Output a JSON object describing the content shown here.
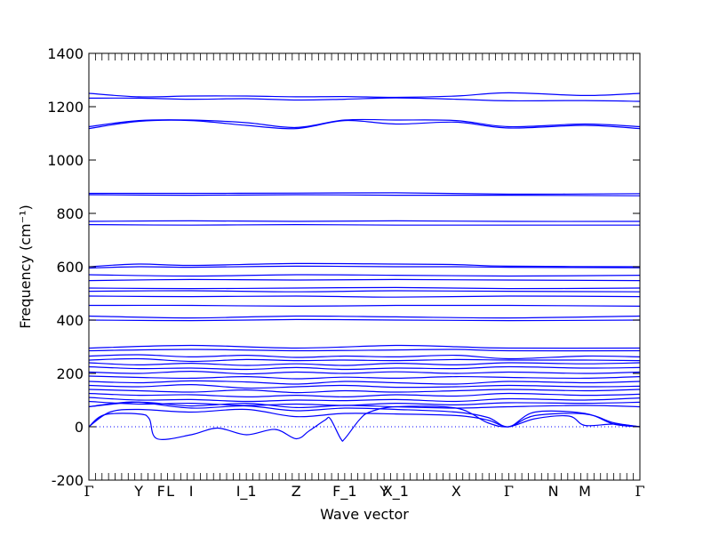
{
  "chart_data": {
    "type": "line",
    "title": "",
    "xlabel": "Wave vector",
    "ylabel": "Frequency (cm⁻¹)",
    "ylim": [
      -200,
      1400
    ],
    "yticks": [
      -200,
      0,
      200,
      400,
      600,
      800,
      1000,
      1200,
      1400
    ],
    "xlim": [
      0,
      21
    ],
    "xticks": [
      {
        "label": "Γ",
        "x": 0
      },
      {
        "label": "Y",
        "x": 1.9
      },
      {
        "label": "F",
        "x": 2.75
      },
      {
        "label": "L",
        "x": 3.1
      },
      {
        "label": "I",
        "x": 3.9
      },
      {
        "label": "I_1",
        "x": 6.0
      },
      {
        "label": "Z",
        "x": 7.9
      },
      {
        "label": "F_1",
        "x": 9.75
      },
      {
        "label": "Y",
        "x": 11.25
      },
      {
        "label": "X_1",
        "x": 11.7
      },
      {
        "label": "X",
        "x": 14.0
      },
      {
        "label": "Γ",
        "x": 16.0
      },
      {
        "label": "N",
        "x": 17.7
      },
      {
        "label": "M",
        "x": 18.9
      },
      {
        "label": "Γ",
        "x": 21.0
      }
    ],
    "grid": false,
    "reference_line": {
      "y": 0,
      "style": "dotted"
    },
    "series_color": "#0000ff",
    "series": [
      {
        "x": [
          0,
          1.9,
          3.9,
          6.0,
          7.9,
          9.75,
          11.7,
          14.0,
          16.0,
          18.9,
          21
        ],
        "values": [
          1250,
          1237,
          1240,
          1240,
          1237,
          1238,
          1235,
          1240,
          1252,
          1242,
          1250
        ]
      },
      {
        "x": [
          0,
          1.9,
          3.9,
          6.0,
          7.9,
          9.75,
          11.7,
          14.0,
          16.0,
          18.9,
          21
        ],
        "values": [
          1232,
          1232,
          1228,
          1230,
          1225,
          1228,
          1233,
          1228,
          1222,
          1223,
          1220
        ]
      },
      {
        "x": [
          0,
          1.9,
          3.9,
          6.0,
          7.9,
          9.75,
          11.7,
          14.0,
          16.0,
          18.9,
          21
        ],
        "values": [
          1125,
          1148,
          1150,
          1140,
          1122,
          1150,
          1150,
          1148,
          1125,
          1135,
          1125
        ]
      },
      {
        "x": [
          0,
          1.9,
          3.9,
          6.0,
          7.9,
          9.75,
          11.7,
          14.0,
          16.0,
          18.9,
          21
        ],
        "values": [
          1118,
          1145,
          1148,
          1130,
          1118,
          1148,
          1135,
          1142,
          1120,
          1130,
          1118
        ]
      },
      {
        "x": [
          0,
          3.9,
          7.9,
          11.7,
          16.0,
          21
        ],
        "values": [
          875,
          875,
          876,
          877,
          872,
          874
        ]
      },
      {
        "x": [
          0,
          3.9,
          7.9,
          11.7,
          16.0,
          21
        ],
        "values": [
          870,
          868,
          870,
          868,
          868,
          866
        ]
      },
      {
        "x": [
          0,
          3.9,
          7.9,
          11.7,
          16.0,
          21
        ],
        "values": [
          770,
          772,
          770,
          772,
          770,
          770
        ]
      },
      {
        "x": [
          0,
          3.9,
          7.9,
          11.7,
          16.0,
          21
        ],
        "values": [
          758,
          756,
          758,
          756,
          756,
          756
        ]
      },
      {
        "x": [
          0,
          1.9,
          3.9,
          7.9,
          11.7,
          14.0,
          16.0,
          21
        ],
        "values": [
          600,
          610,
          605,
          612,
          610,
          608,
          602,
          600
        ]
      },
      {
        "x": [
          0,
          1.9,
          3.9,
          7.9,
          11.7,
          14.0,
          16.0,
          21
        ],
        "values": [
          595,
          600,
          598,
          602,
          600,
          600,
          598,
          596
        ]
      },
      {
        "x": [
          0,
          3.9,
          7.9,
          11.7,
          16.0,
          21
        ],
        "values": [
          570,
          565,
          570,
          568,
          565,
          568
        ]
      },
      {
        "x": [
          0,
          3.9,
          7.9,
          11.7,
          16.0,
          21
        ],
        "values": [
          548,
          552,
          550,
          552,
          550,
          548
        ]
      },
      {
        "x": [
          0,
          3.9,
          7.9,
          11.7,
          16.0,
          21
        ],
        "values": [
          520,
          518,
          520,
          522,
          518,
          520
        ]
      },
      {
        "x": [
          0,
          3.9,
          7.9,
          11.7,
          16.0,
          21
        ],
        "values": [
          508,
          510,
          506,
          510,
          508,
          506
        ]
      },
      {
        "x": [
          0,
          3.9,
          7.9,
          11.7,
          16.0,
          21
        ],
        "values": [
          490,
          488,
          490,
          486,
          490,
          488
        ]
      },
      {
        "x": [
          0,
          3.9,
          7.9,
          11.7,
          16.0,
          21
        ],
        "values": [
          455,
          455,
          452,
          455,
          455,
          452
        ]
      },
      {
        "x": [
          0,
          3.9,
          7.9,
          11.7,
          16.0,
          21
        ],
        "values": [
          415,
          408,
          415,
          412,
          408,
          415
        ]
      },
      {
        "x": [
          0,
          3.9,
          7.9,
          11.7,
          16.0,
          21
        ],
        "values": [
          400,
          398,
          402,
          400,
          398,
          400
        ]
      },
      {
        "x": [
          0,
          3.9,
          7.9,
          11.7,
          14.0,
          16.0,
          21
        ],
        "values": [
          295,
          305,
          295,
          305,
          300,
          295,
          295
        ]
      },
      {
        "x": [
          0,
          3.9,
          7.9,
          11.7,
          14.0,
          16.0,
          21
        ],
        "values": [
          285,
          290,
          285,
          288,
          290,
          285,
          285
        ]
      },
      {
        "x": [
          0,
          1.9,
          3.9,
          6.0,
          7.9,
          9.75,
          11.7,
          14.0,
          16.0,
          18.9,
          21
        ],
        "values": [
          265,
          270,
          262,
          268,
          260,
          265,
          262,
          268,
          255,
          265,
          262
        ]
      },
      {
        "x": [
          0,
          1.9,
          3.9,
          6.0,
          7.9,
          9.75,
          11.7,
          14.0,
          16.0,
          18.9,
          21
        ],
        "values": [
          250,
          255,
          245,
          252,
          248,
          250,
          248,
          252,
          250,
          250,
          248
        ]
      },
      {
        "x": [
          0,
          1.9,
          3.9,
          6.0,
          7.9,
          9.75,
          11.7,
          14.0,
          16.0,
          18.9,
          21
        ],
        "values": [
          240,
          232,
          238,
          230,
          236,
          230,
          238,
          232,
          240,
          236,
          240
        ]
      },
      {
        "x": [
          0,
          1.9,
          3.9,
          6.0,
          7.9,
          9.75,
          11.7,
          14.0,
          16.0,
          18.9,
          21
        ],
        "values": [
          225,
          218,
          220,
          215,
          222,
          215,
          220,
          218,
          225,
          220,
          222
        ]
      },
      {
        "x": [
          0,
          1.9,
          3.9,
          6.0,
          7.9,
          9.75,
          11.7,
          14.0,
          16.0,
          18.9,
          21
        ],
        "values": [
          205,
          200,
          208,
          198,
          205,
          200,
          206,
          200,
          205,
          200,
          205
        ]
      },
      {
        "x": [
          0,
          1.9,
          3.9,
          6.0,
          7.9,
          9.75,
          11.7,
          14.0,
          16.0,
          18.9,
          21
        ],
        "values": [
          190,
          185,
          182,
          188,
          180,
          186,
          182,
          188,
          185,
          182,
          188
        ]
      },
      {
        "x": [
          0,
          1.9,
          3.9,
          6.0,
          7.9,
          9.75,
          11.7,
          14.0,
          16.0,
          18.9,
          21
        ],
        "values": [
          170,
          165,
          172,
          168,
          160,
          170,
          165,
          160,
          170,
          165,
          170
        ]
      },
      {
        "x": [
          0,
          1.9,
          3.9,
          6.0,
          7.9,
          9.75,
          11.7,
          14.0,
          16.0,
          18.9,
          21
        ],
        "values": [
          155,
          150,
          158,
          145,
          150,
          155,
          148,
          150,
          155,
          150,
          152
        ]
      },
      {
        "x": [
          0,
          1.9,
          3.9,
          6.0,
          7.9,
          9.75,
          11.7,
          14.0,
          16.0,
          18.9,
          21
        ],
        "values": [
          140,
          135,
          130,
          138,
          128,
          135,
          130,
          135,
          140,
          135,
          140
        ]
      },
      {
        "x": [
          0,
          1.9,
          3.9,
          6.0,
          7.9,
          9.75,
          11.7,
          14.0,
          16.0,
          18.9,
          21
        ],
        "values": [
          125,
          118,
          120,
          112,
          118,
          112,
          120,
          115,
          125,
          118,
          122
        ]
      },
      {
        "x": [
          0,
          1.9,
          3.9,
          6.0,
          7.9,
          9.75,
          11.7,
          14.0,
          16.0,
          18.9,
          21
        ],
        "values": [
          110,
          100,
          102,
          95,
          100,
          98,
          102,
          95,
          105,
          100,
          108
        ]
      },
      {
        "x": [
          0,
          1.9,
          3.9,
          6.0,
          7.9,
          9.75,
          11.7,
          14.0,
          16.0,
          18.9,
          21
        ],
        "values": [
          95,
          85,
          88,
          80,
          85,
          80,
          88,
          82,
          90,
          88,
          92
        ]
      },
      {
        "x": [
          0,
          1.9,
          3.9,
          6.0,
          7.9,
          9.75,
          11.7,
          14.0,
          16.0,
          18.9,
          21
        ],
        "values": [
          75,
          92,
          78,
          88,
          72,
          80,
          75,
          70,
          75,
          80,
          75
        ]
      },
      {
        "x": [
          0,
          1,
          1.9,
          3.9,
          6.0,
          7.9,
          9.75,
          11.7,
          14.0,
          15.2,
          16.0,
          17,
          18.9,
          20,
          21
        ],
        "values": [
          75,
          88,
          92,
          70,
          78,
          60,
          70,
          65,
          55,
          35,
          0,
          55,
          50,
          10,
          0
        ]
      },
      {
        "x": [
          0,
          0.8,
          1.9,
          3.9,
          6.0,
          7.9,
          9.75,
          11.7,
          14.0,
          15.2,
          16.0,
          17,
          18.9,
          20,
          21
        ],
        "values": [
          0,
          55,
          65,
          55,
          65,
          38,
          50,
          48,
          42,
          25,
          0,
          42,
          48,
          15,
          0
        ]
      },
      {
        "x": [
          0,
          0.6,
          1.9,
          2.3,
          2.6,
          3.9,
          4.9,
          6.0,
          7.1,
          7.9,
          8.4,
          9.0,
          9.2,
          9.6,
          9.75,
          10.3,
          10.7,
          11.7,
          14.0,
          15.2,
          16.0,
          17,
          18.3,
          18.9,
          20,
          21
        ],
        "values": [
          0,
          45,
          48,
          30,
          -45,
          -30,
          -5,
          -30,
          -10,
          -45,
          -15,
          25,
          30,
          -45,
          -45,
          25,
          55,
          75,
          70,
          15,
          0,
          30,
          40,
          5,
          10,
          0
        ]
      }
    ]
  }
}
